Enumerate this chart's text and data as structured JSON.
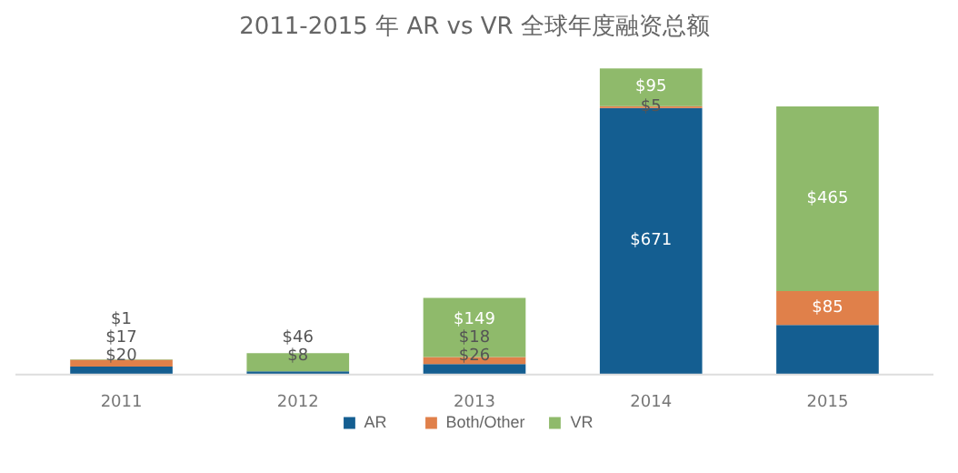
{
  "chart_data": {
    "type": "bar",
    "title": "2011-2015 年 AR vs VR 全球年度融资总额",
    "categories": [
      "2011",
      "2012",
      "2013",
      "2014",
      "2015"
    ],
    "stacked": true,
    "legend": "bottom",
    "series": [
      {
        "name": "AR",
        "color": "#145e91",
        "values": [
          20,
          8,
          26,
          671,
          125
        ],
        "value_labels": [
          "$20",
          "$8",
          "$26",
          "$671",
          null
        ]
      },
      {
        "name": "Both/Other",
        "color": "#e0804a",
        "values": [
          17,
          null,
          18,
          5,
          85
        ],
        "value_labels": [
          "$17",
          null,
          "$18",
          "$5",
          "$85"
        ]
      },
      {
        "name": "VR",
        "color": "#8fba6b",
        "values": [
          1,
          46,
          149,
          95,
          465
        ],
        "value_labels": [
          "$1",
          "$46",
          "$149",
          "$95",
          "$465"
        ]
      }
    ]
  }
}
